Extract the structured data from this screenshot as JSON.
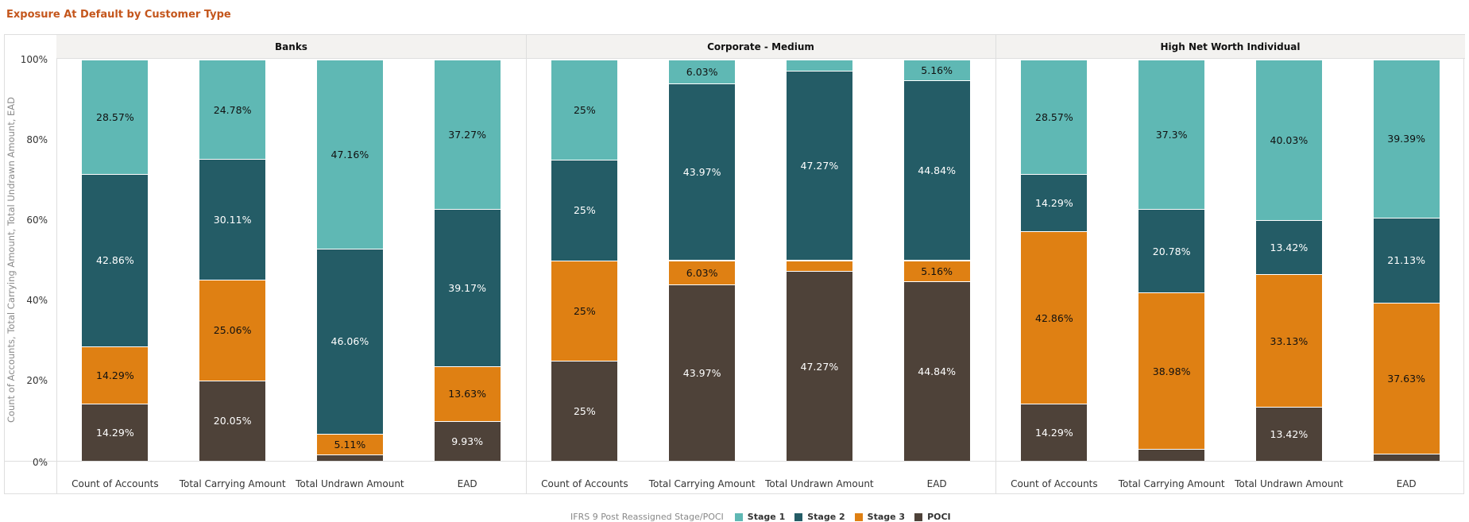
{
  "title": "Exposure At Default by Customer Type",
  "chart_data": {
    "type": "bar",
    "stacking": "percent",
    "title": "Exposure At Default by Customer Type",
    "ylabel": "Count of Accounts, Total Carrying Amount, Total Undrawn Amount, EAD",
    "ylim": [
      0,
      100
    ],
    "yticks": [
      "0%",
      "20%",
      "40%",
      "60%",
      "80%",
      "100%"
    ],
    "grid": false,
    "legend_position": "bottom",
    "legend_title": "IFRS 9 Post Reassigned Stage/POCI",
    "categories": [
      "Count of Accounts",
      "Total Carrying Amount",
      "Total Undrawn Amount",
      "EAD"
    ],
    "series_meta": [
      {
        "name": "Stage 1",
        "color": "#5fb8b4",
        "label_color": "#111111"
      },
      {
        "name": "Stage 2",
        "color": "#245c66",
        "label_color": "#ffffff"
      },
      {
        "name": "Stage 3",
        "color": "#df8013",
        "label_color": "#111111"
      },
      {
        "name": "POCI",
        "color": "#4e4239",
        "label_color": "#ffffff"
      }
    ],
    "panels": [
      {
        "name": "Banks",
        "series": [
          {
            "name": "Stage 1",
            "values": [
              28.57,
              24.78,
              47.16,
              37.27
            ]
          },
          {
            "name": "Stage 2",
            "values": [
              42.86,
              30.11,
              46.06,
              39.17
            ]
          },
          {
            "name": "Stage 3",
            "values": [
              14.29,
              25.06,
              5.11,
              13.63
            ]
          },
          {
            "name": "POCI",
            "values": [
              14.29,
              20.05,
              1.67,
              9.93
            ]
          }
        ]
      },
      {
        "name": "Corporate - Medium",
        "series": [
          {
            "name": "Stage 1",
            "values": [
              25,
              6.03,
              2.73,
              5.16
            ]
          },
          {
            "name": "Stage 2",
            "values": [
              25,
              43.97,
              47.27,
              44.84
            ]
          },
          {
            "name": "Stage 3",
            "values": [
              25,
              6.03,
              2.73,
              5.16
            ]
          },
          {
            "name": "POCI",
            "values": [
              25,
              43.97,
              47.27,
              44.84
            ]
          }
        ]
      },
      {
        "name": "High Net Worth Individual",
        "series": [
          {
            "name": "Stage 1",
            "values": [
              28.57,
              37.3,
              40.03,
              39.39
            ]
          },
          {
            "name": "Stage 2",
            "values": [
              14.29,
              20.78,
              13.42,
              21.13
            ]
          },
          {
            "name": "Stage 3",
            "values": [
              42.86,
              38.98,
              33.13,
              37.63
            ]
          },
          {
            "name": "POCI",
            "values": [
              14.29,
              2.94,
              13.42,
              1.85
            ]
          }
        ]
      }
    ]
  }
}
